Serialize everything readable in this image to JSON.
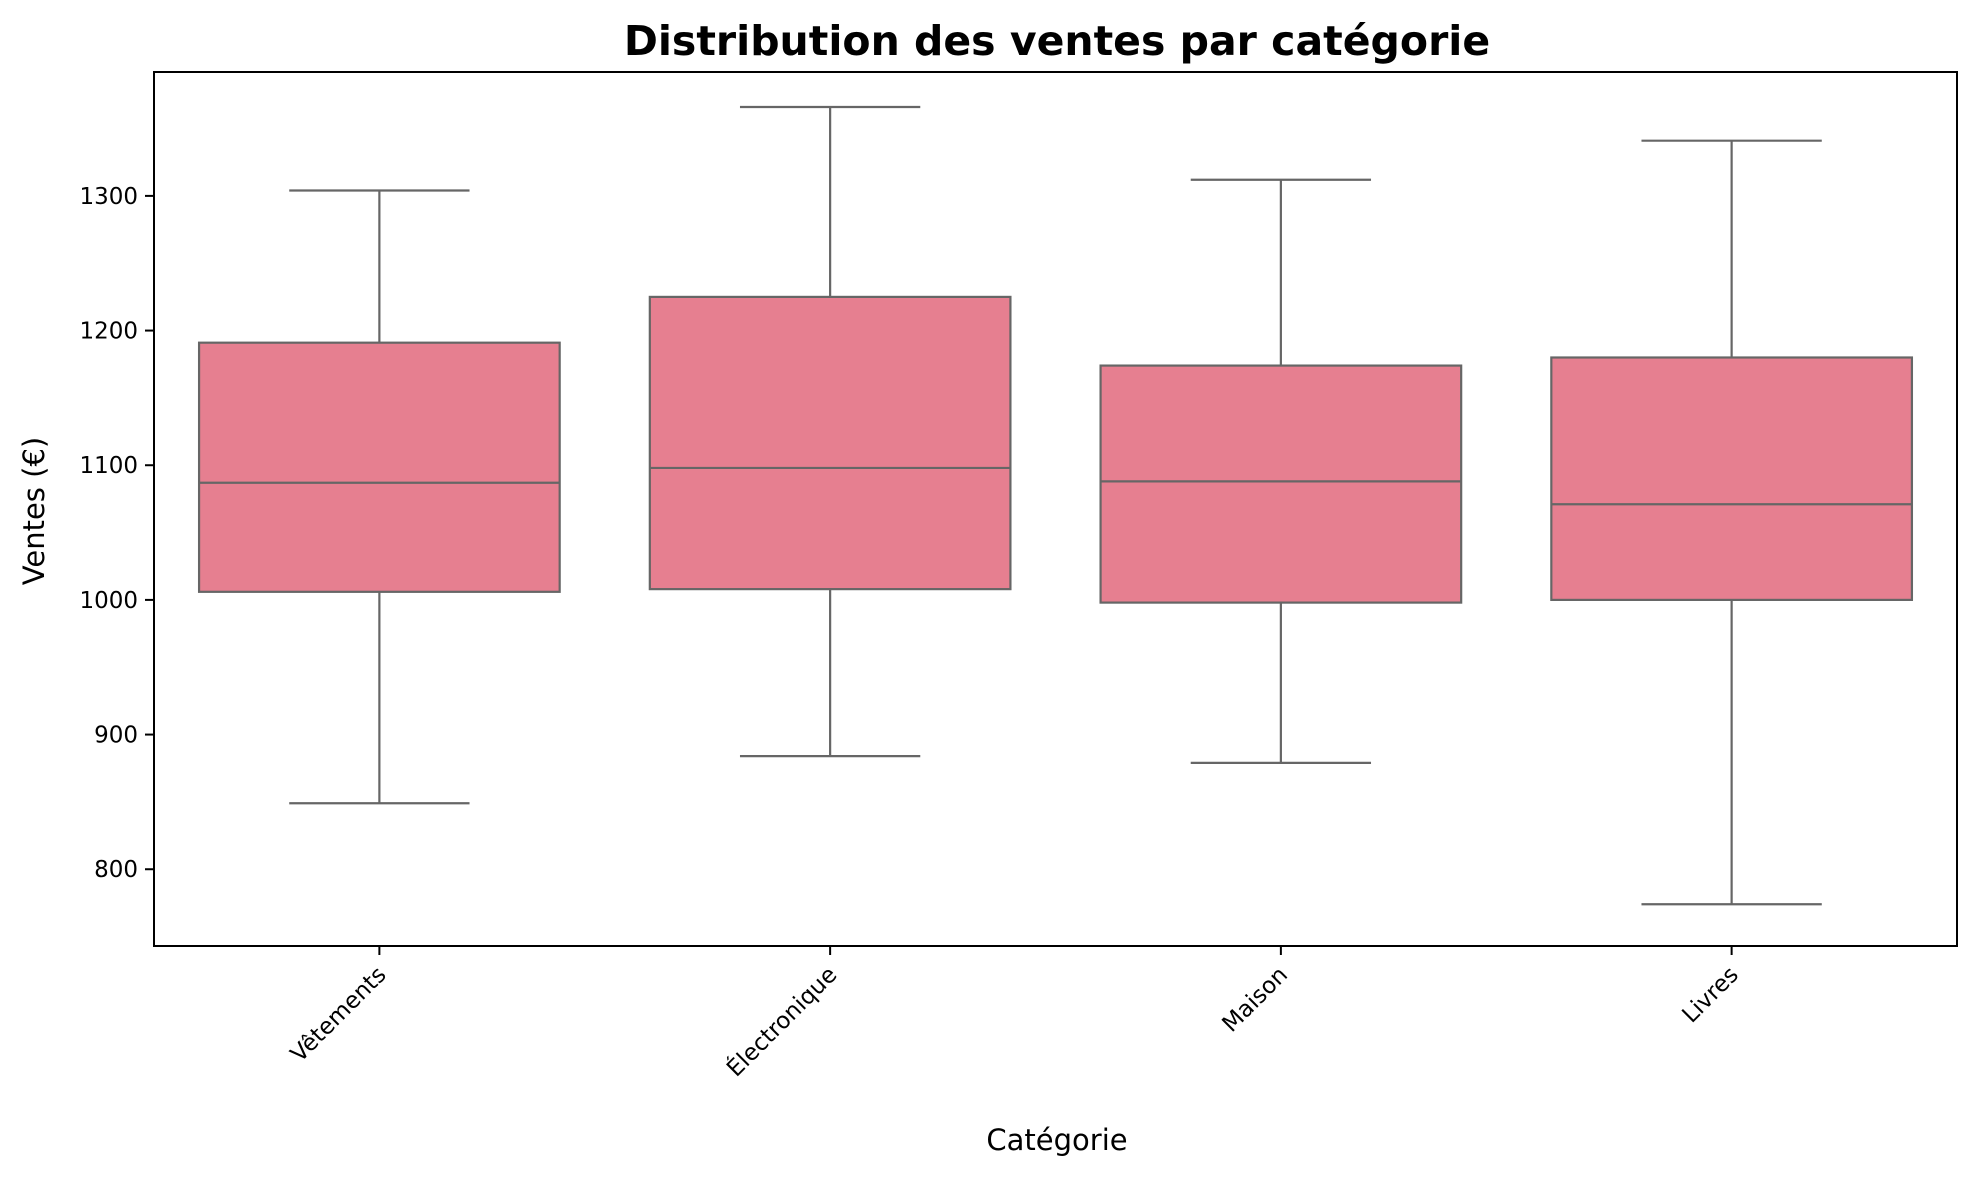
{
  "chart_data": {
    "type": "box",
    "title": "Distribution des ventes par catégorie",
    "xlabel": "Catégorie",
    "ylabel": "Ventes (€)",
    "ylim": [
      743,
      1392
    ],
    "yticks": [
      800,
      900,
      1000,
      1100,
      1200,
      1300
    ],
    "xtick_rotation": 45,
    "grid": false,
    "legend": "none",
    "colors": {
      "box_fill": "#e67f90",
      "box_line": "#666666",
      "axis": "#000000"
    },
    "categories": [
      "Vêtements",
      "Électronique",
      "Maison",
      "Livres"
    ],
    "boxes": [
      {
        "category": "Vêtements",
        "whislo": 849,
        "q1": 1006,
        "med": 1087,
        "q3": 1191,
        "whishi": 1304
      },
      {
        "category": "Électronique",
        "whislo": 884,
        "q1": 1008,
        "med": 1098,
        "q3": 1225,
        "whishi": 1366
      },
      {
        "category": "Maison",
        "whislo": 879,
        "q1": 998,
        "med": 1088,
        "q3": 1174,
        "whishi": 1312
      },
      {
        "category": "Livres",
        "whislo": 774,
        "q1": 1000,
        "med": 1071,
        "q3": 1180,
        "whishi": 1341
      }
    ]
  }
}
